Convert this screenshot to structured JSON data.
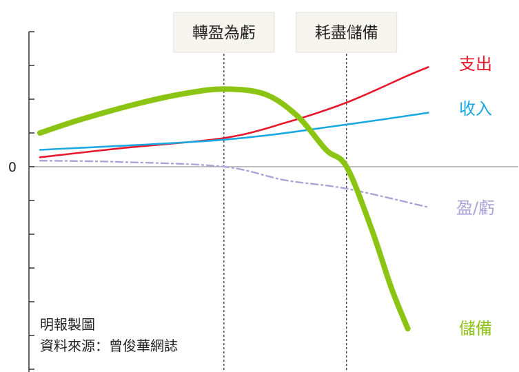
{
  "chart_data": {
    "type": "line",
    "title": "",
    "xlabel": "",
    "ylabel": "",
    "y_tick_labels": [
      "0"
    ],
    "grid": false,
    "x_range": [
      0,
      10
    ],
    "y_range": [
      -6,
      4
    ],
    "vertical_markers": [
      {
        "x": 4.5,
        "label": "轉盈為虧"
      },
      {
        "x": 7.5,
        "label": "耗盡儲備"
      }
    ],
    "series": [
      {
        "name": "支出",
        "color": "#e8172c",
        "style": "solid",
        "points": [
          [
            0,
            0.28
          ],
          [
            2,
            0.55
          ],
          [
            4.5,
            0.85
          ],
          [
            6,
            1.3
          ],
          [
            7.5,
            1.9
          ],
          [
            9,
            2.7
          ],
          [
            9.5,
            2.95
          ]
        ]
      },
      {
        "name": "收入",
        "color": "#1aa8e0",
        "style": "solid",
        "points": [
          [
            0,
            0.5
          ],
          [
            4.5,
            0.8
          ],
          [
            7.5,
            1.25
          ],
          [
            9.5,
            1.6
          ]
        ]
      },
      {
        "name": "盈/虧",
        "color": "#a8a4d6",
        "style": "dash-dot",
        "points": [
          [
            0,
            0.18
          ],
          [
            2,
            0.14
          ],
          [
            4.5,
            0.0
          ],
          [
            6,
            -0.4
          ],
          [
            7.5,
            -0.65
          ],
          [
            9.5,
            -1.2
          ]
        ]
      },
      {
        "name": "儲備",
        "color": "#8cc414",
        "style": "solid-thick",
        "points": [
          [
            0,
            1.0
          ],
          [
            1,
            1.4
          ],
          [
            2.5,
            1.9
          ],
          [
            3.6,
            2.18
          ],
          [
            4.5,
            2.3
          ],
          [
            5.5,
            2.15
          ],
          [
            6.3,
            1.5
          ],
          [
            7.0,
            0.5
          ],
          [
            7.5,
            0.0
          ],
          [
            8.1,
            -1.8
          ],
          [
            8.6,
            -3.6
          ],
          [
            9.0,
            -4.8
          ]
        ]
      }
    ]
  },
  "source": {
    "line1": "明報製圖",
    "line2": "資料來源：曾俊華網誌"
  }
}
